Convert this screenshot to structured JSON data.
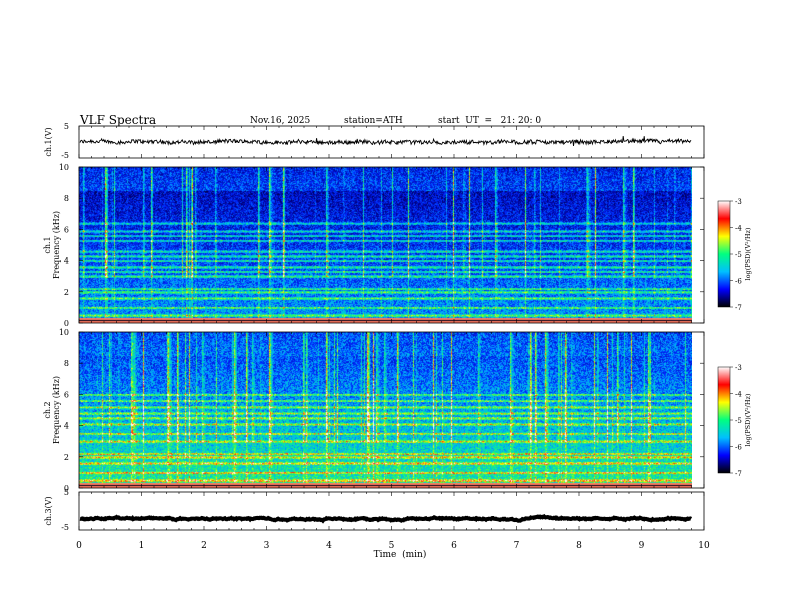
{
  "header": {
    "title": "VLF  Spectra",
    "date": "Nov.16, 2025",
    "station": "station=ATH",
    "start_ut": "start  UT  =   21: 20: 0"
  },
  "colorbar": {
    "ticks": [
      "-3",
      "-4",
      "-5",
      "-6",
      "-7"
    ],
    "label": "log(PSD)(V²/Hz)",
    "colors": [
      "#000000",
      "#0000ff",
      "#00c0ff",
      "#00ff80",
      "#ffff00",
      "#ff0000",
      "#ffffff"
    ]
  },
  "chart_data": [
    {
      "type": "line",
      "name": "ch1-waveform",
      "ylabel": "ch.1(V)",
      "ylim": [
        -5,
        5
      ],
      "yticks": [
        "5",
        "-5"
      ],
      "xlim": [
        0,
        10
      ],
      "baseline": 0,
      "noise_amplitude": 1.2
    },
    {
      "type": "heatmap",
      "name": "ch1-spectrogram",
      "ylabel": [
        "ch.1",
        "Frequency  (kHz)"
      ],
      "ylim": [
        0,
        10
      ],
      "yticks": [
        "10",
        "8",
        "6",
        "4",
        "2",
        "0"
      ],
      "xlim": [
        0,
        9.8
      ],
      "clim": [
        -7,
        -3
      ],
      "bands_khz": [
        0.5,
        1.0,
        1.6,
        2.0,
        2.2,
        3.0,
        3.3,
        3.6,
        4.0,
        4.3,
        4.6,
        5.3,
        5.6,
        5.9,
        6.4
      ]
    },
    {
      "type": "heatmap",
      "name": "ch2-spectrogram",
      "ylabel": [
        "ch.2",
        "Frequency  (kHz)"
      ],
      "ylim": [
        0,
        10
      ],
      "yticks": [
        "10",
        "8",
        "6",
        "4",
        "2",
        "0"
      ],
      "xlim": [
        0,
        9.8
      ],
      "clim": [
        -7,
        -3
      ],
      "bands_khz": [
        0.5,
        1.0,
        1.6,
        2.0,
        2.2,
        3.0,
        3.5,
        4.1,
        4.5,
        4.8,
        5.2,
        5.6,
        6.0
      ]
    },
    {
      "type": "line",
      "name": "ch3-waveform",
      "ylabel": "ch.3(V)",
      "ylim": [
        -5,
        5
      ],
      "yticks": [
        "5",
        "-5"
      ],
      "xlim": [
        0,
        10
      ],
      "baseline": -2,
      "noise_amplitude": 0.15
    }
  ],
  "x_axis": {
    "label": "Time  (min)",
    "ticks": [
      "0",
      "1",
      "2",
      "3",
      "4",
      "5",
      "6",
      "7",
      "8",
      "9",
      "10"
    ]
  }
}
